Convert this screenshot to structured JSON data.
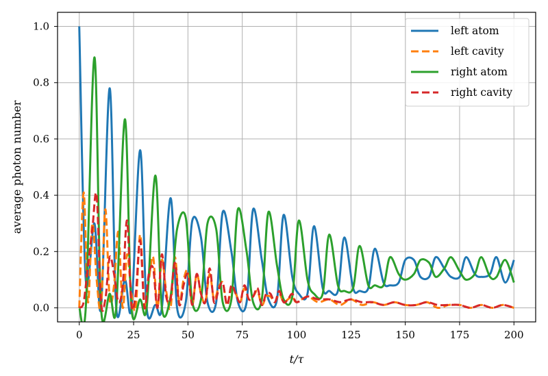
{
  "chart_data": {
    "type": "line",
    "xlabel": "t/τ",
    "ylabel": "average photon number",
    "xlim": [
      -10,
      210
    ],
    "ylim": [
      -0.05,
      1.05
    ],
    "xticks": [
      0,
      25,
      50,
      75,
      100,
      125,
      150,
      175,
      200
    ],
    "yticks": [
      0.0,
      0.2,
      0.4,
      0.6,
      0.8,
      1.0
    ],
    "grid": true,
    "legend_position": "top-right",
    "series": [
      {
        "name": "left atom",
        "color": "#1f77b4",
        "dash": "solid",
        "x": [
          0,
          3,
          7,
          10,
          14,
          17,
          21,
          24,
          28,
          31,
          35,
          38,
          42,
          45,
          49,
          52,
          56,
          59,
          63,
          66,
          70,
          73,
          77,
          80,
          84,
          87,
          91,
          94,
          98,
          101,
          105,
          108,
          112,
          115,
          119,
          122,
          126,
          129,
          133,
          136,
          140,
          143,
          147,
          150,
          154,
          157,
          161,
          164,
          168,
          171,
          175,
          178,
          182,
          185,
          189,
          192,
          196,
          200
        ],
        "y": [
          1.0,
          0.1,
          0.3,
          0.0,
          0.78,
          0.0,
          0.1,
          0.0,
          0.56,
          0.0,
          0.01,
          0.0,
          0.39,
          0.0,
          0.02,
          0.31,
          0.25,
          0.02,
          0.02,
          0.34,
          0.2,
          0.02,
          0.02,
          0.35,
          0.17,
          0.03,
          0.03,
          0.33,
          0.11,
          0.05,
          0.05,
          0.29,
          0.07,
          0.06,
          0.06,
          0.25,
          0.07,
          0.06,
          0.07,
          0.21,
          0.09,
          0.08,
          0.09,
          0.17,
          0.17,
          0.11,
          0.11,
          0.18,
          0.14,
          0.11,
          0.11,
          0.18,
          0.12,
          0.11,
          0.12,
          0.18,
          0.09,
          0.17
        ]
      },
      {
        "name": "left cavity",
        "color": "#ff7f0e",
        "dash": "dashed",
        "x": [
          0,
          2,
          4,
          6,
          8,
          10,
          12,
          14,
          16,
          18,
          20,
          22,
          24,
          26,
          28,
          30,
          32,
          34,
          36,
          38,
          40,
          42,
          44,
          46,
          48,
          50,
          52,
          54,
          56,
          58,
          60,
          62,
          64,
          66,
          68,
          70,
          72,
          74,
          76,
          78,
          80,
          82,
          84,
          86,
          88,
          90,
          92,
          94,
          96,
          98,
          100,
          105,
          110,
          115,
          120,
          125,
          130,
          135,
          140,
          145,
          150,
          155,
          160,
          165,
          170,
          175,
          180,
          185,
          190,
          195,
          200
        ],
        "y": [
          0.0,
          0.41,
          0.02,
          0.3,
          0.1,
          0.0,
          0.35,
          0.03,
          0.08,
          0.27,
          0.0,
          0.19,
          0.05,
          0.0,
          0.26,
          0.01,
          0.1,
          0.18,
          0.0,
          0.17,
          0.06,
          0.0,
          0.18,
          0.02,
          0.1,
          0.13,
          0.01,
          0.12,
          0.05,
          0.02,
          0.12,
          0.03,
          0.07,
          0.09,
          0.01,
          0.07,
          0.05,
          0.02,
          0.07,
          0.03,
          0.04,
          0.06,
          0.01,
          0.04,
          0.04,
          0.02,
          0.05,
          0.02,
          0.03,
          0.04,
          0.02,
          0.04,
          0.02,
          0.03,
          0.01,
          0.03,
          0.01,
          0.02,
          0.01,
          0.02,
          0.01,
          0.01,
          0.02,
          0.0,
          0.01,
          0.01,
          0.0,
          0.01,
          0.0,
          0.01,
          0.0
        ]
      },
      {
        "name": "right atom",
        "color": "#2ca02c",
        "dash": "solid",
        "x": [
          0,
          3,
          7,
          10,
          14,
          17,
          21,
          24,
          28,
          31,
          35,
          38,
          42,
          45,
          49,
          52,
          56,
          59,
          63,
          66,
          70,
          73,
          77,
          80,
          84,
          87,
          91,
          94,
          98,
          101,
          105,
          108,
          112,
          115,
          119,
          122,
          126,
          129,
          133,
          136,
          140,
          143,
          147,
          150,
          154,
          157,
          161,
          164,
          168,
          171,
          175,
          178,
          182,
          185,
          189,
          192,
          196,
          200
        ],
        "y": [
          0.0,
          0.0,
          0.89,
          0.0,
          0.05,
          0.0,
          0.67,
          0.0,
          0.03,
          0.0,
          0.47,
          0.0,
          0.04,
          0.28,
          0.32,
          0.02,
          0.03,
          0.3,
          0.28,
          0.02,
          0.03,
          0.35,
          0.2,
          0.02,
          0.03,
          0.34,
          0.15,
          0.03,
          0.04,
          0.31,
          0.1,
          0.05,
          0.05,
          0.26,
          0.08,
          0.06,
          0.07,
          0.22,
          0.08,
          0.08,
          0.08,
          0.18,
          0.12,
          0.1,
          0.12,
          0.17,
          0.16,
          0.11,
          0.14,
          0.18,
          0.13,
          0.1,
          0.12,
          0.18,
          0.11,
          0.11,
          0.17,
          0.09
        ]
      },
      {
        "name": "right cavity",
        "color": "#d62728",
        "dash": "dashed",
        "x": [
          0,
          2,
          4,
          6,
          8,
          10,
          12,
          14,
          16,
          18,
          20,
          22,
          24,
          26,
          28,
          30,
          32,
          34,
          36,
          38,
          40,
          42,
          44,
          46,
          48,
          50,
          52,
          54,
          56,
          58,
          60,
          62,
          64,
          66,
          68,
          70,
          72,
          74,
          76,
          78,
          80,
          82,
          84,
          86,
          88,
          90,
          92,
          94,
          96,
          98,
          100,
          105,
          110,
          115,
          120,
          125,
          130,
          135,
          140,
          145,
          150,
          155,
          160,
          165,
          170,
          175,
          180,
          185,
          190,
          195,
          200
        ],
        "y": [
          0.0,
          0.02,
          0.15,
          0.28,
          0.4,
          0.02,
          0.03,
          0.18,
          0.12,
          0.02,
          0.08,
          0.31,
          0.01,
          0.05,
          0.24,
          0.0,
          0.12,
          0.14,
          0.0,
          0.19,
          0.04,
          0.03,
          0.16,
          0.01,
          0.08,
          0.12,
          0.01,
          0.12,
          0.05,
          0.02,
          0.14,
          0.02,
          0.06,
          0.09,
          0.01,
          0.08,
          0.05,
          0.02,
          0.08,
          0.03,
          0.04,
          0.07,
          0.01,
          0.05,
          0.05,
          0.02,
          0.06,
          0.02,
          0.03,
          0.05,
          0.02,
          0.04,
          0.03,
          0.03,
          0.02,
          0.03,
          0.02,
          0.02,
          0.01,
          0.02,
          0.01,
          0.01,
          0.02,
          0.01,
          0.01,
          0.01,
          0.0,
          0.01,
          0.0,
          0.01,
          0.0
        ]
      }
    ]
  }
}
